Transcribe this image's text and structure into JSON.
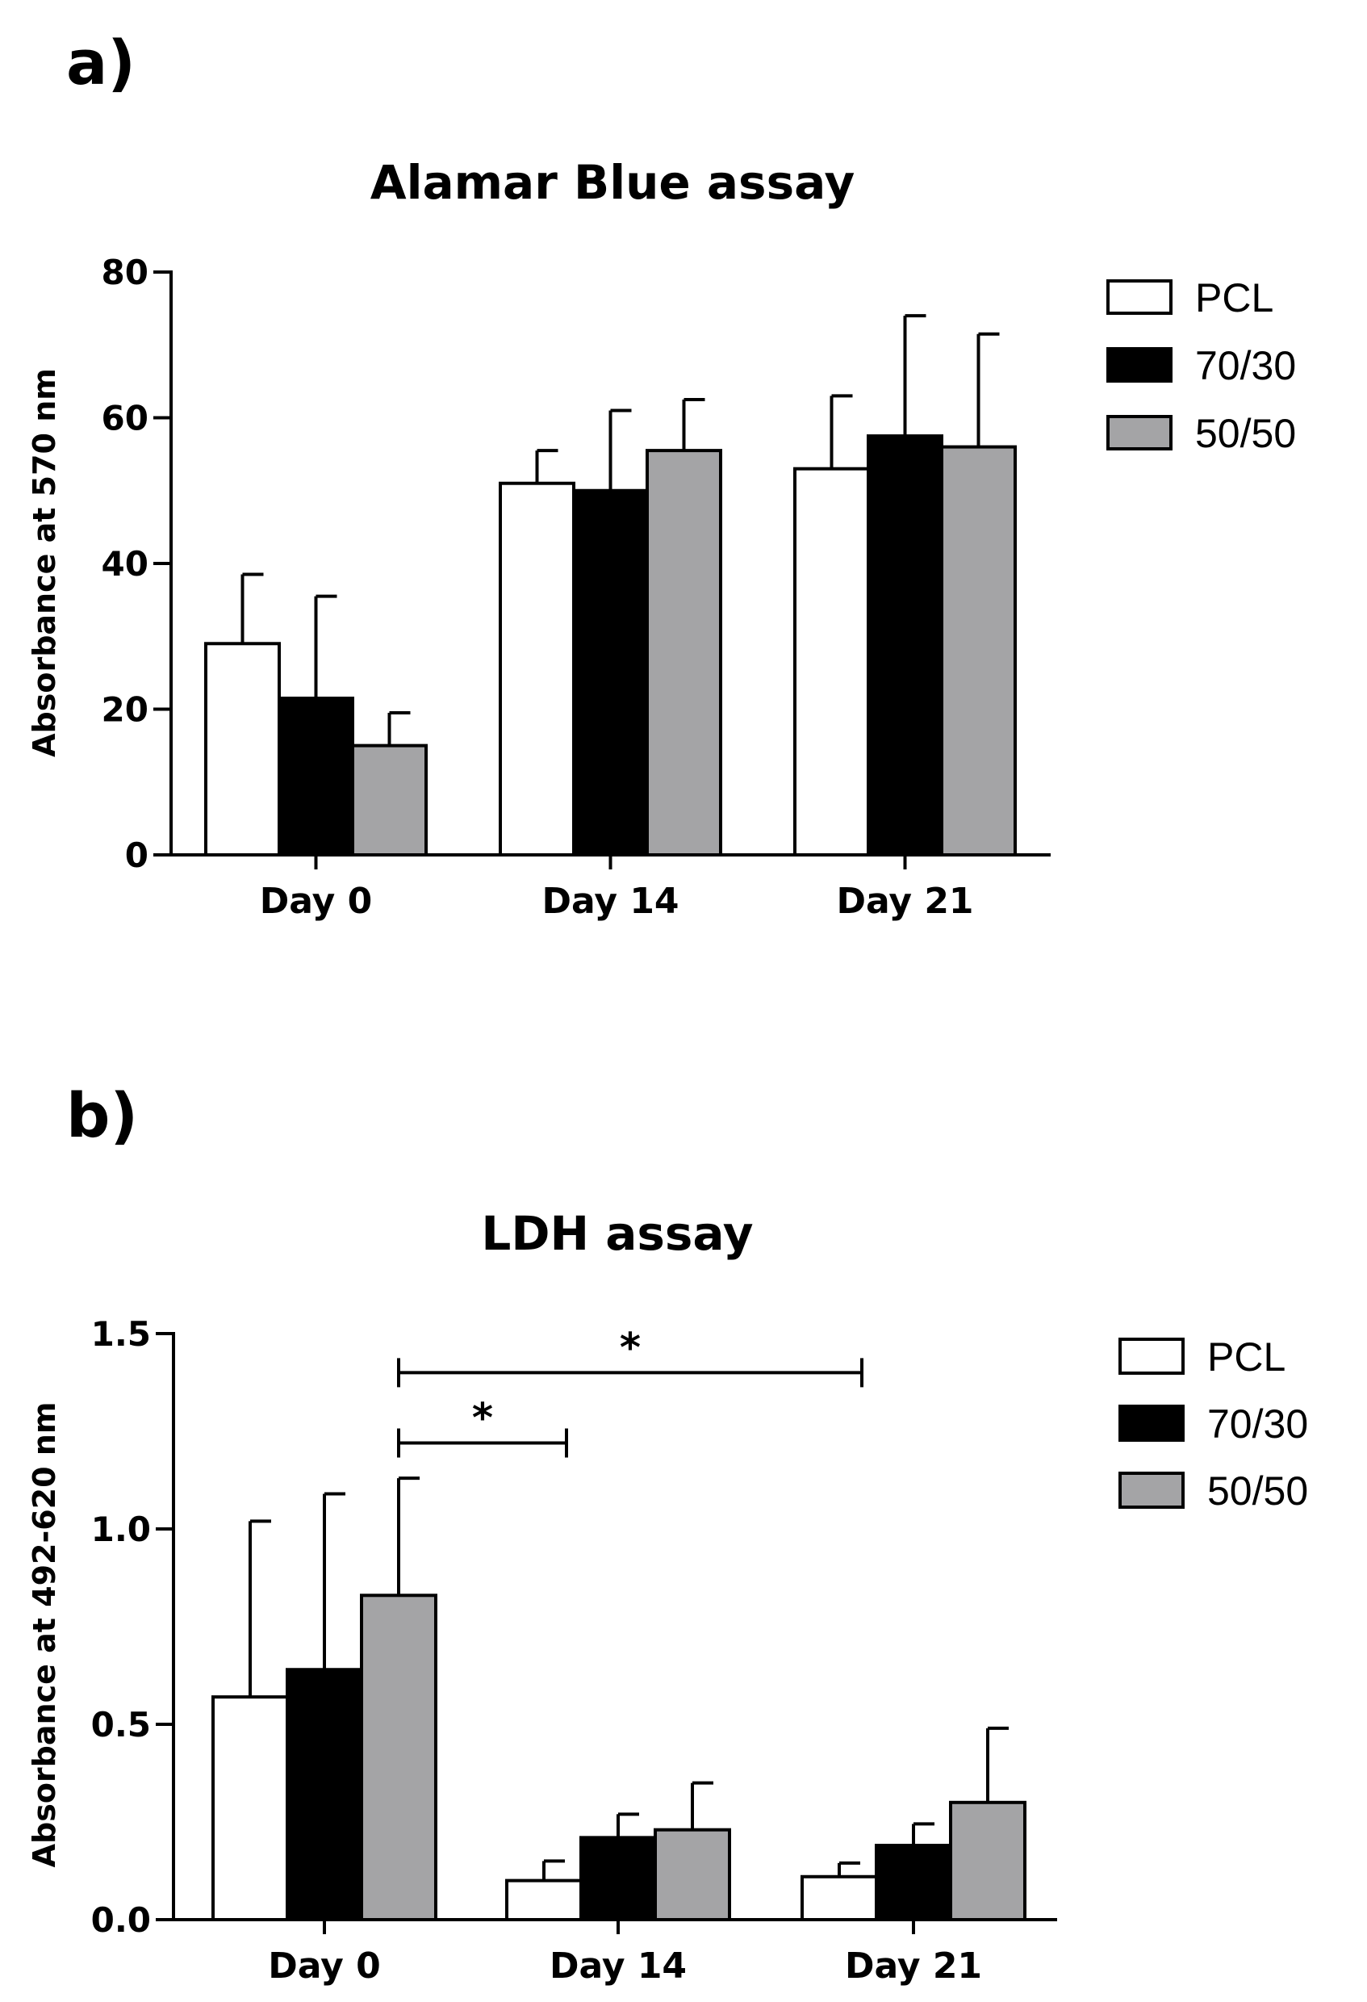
{
  "panels": [
    {
      "id": "a",
      "label": "a)"
    },
    {
      "id": "b",
      "label": "b)"
    }
  ],
  "chart_data": [
    {
      "type": "bar",
      "title": "Alamar Blue assay",
      "xlabel": "",
      "ylabel": "Absorbance at 570 nm",
      "categories": [
        "Day 0",
        "Day 14",
        "Day 21"
      ],
      "ylim": [
        0,
        80
      ],
      "yticks": [
        0,
        20,
        40,
        60,
        80
      ],
      "ytick_labels": [
        "0",
        "20",
        "40",
        "60",
        "80"
      ],
      "grid": false,
      "legend": "right",
      "series": [
        {
          "name": "PCL",
          "color": "#ffffff",
          "values": [
            29,
            51,
            53
          ],
          "errors": [
            9.5,
            4.5,
            10
          ]
        },
        {
          "name": "70/30",
          "color": "#000000",
          "values": [
            21.5,
            50,
            57.5
          ],
          "errors": [
            14,
            11,
            16.5
          ]
        },
        {
          "name": "50/50",
          "color": "#a4a4a6",
          "values": [
            15,
            55.5,
            56
          ],
          "errors": [
            4.5,
            7,
            15.5
          ]
        }
      ],
      "annotations": []
    },
    {
      "type": "bar",
      "title": "LDH assay",
      "xlabel": "",
      "ylabel": "Absorbance at 492-620 nm",
      "categories": [
        "Day 0",
        "Day 14",
        "Day 21"
      ],
      "ylim": [
        0,
        1.5
      ],
      "yticks": [
        0,
        0.5,
        1.0,
        1.5
      ],
      "ytick_labels": [
        "0.0",
        "0.5",
        "1.0",
        "1.5"
      ],
      "grid": false,
      "legend": "right",
      "series": [
        {
          "name": "PCL",
          "color": "#ffffff",
          "values": [
            0.57,
            0.1,
            0.11
          ],
          "errors": [
            0.45,
            0.05,
            0.035
          ]
        },
        {
          "name": "70/30",
          "color": "#000000",
          "values": [
            0.64,
            0.21,
            0.19
          ],
          "errors": [
            0.45,
            0.06,
            0.055
          ]
        },
        {
          "name": "50/50",
          "color": "#a4a4a6",
          "values": [
            0.83,
            0.23,
            0.3
          ],
          "errors": [
            0.3,
            0.12,
            0.19
          ]
        }
      ],
      "annotations": [
        {
          "text": "*",
          "from": "Day 0 50/50",
          "to": "Day 14 PCL",
          "y": 1.22
        },
        {
          "text": "*",
          "from": "Day 0 50/50",
          "to": "Day 21 PCL",
          "y": 1.4
        }
      ]
    }
  ]
}
